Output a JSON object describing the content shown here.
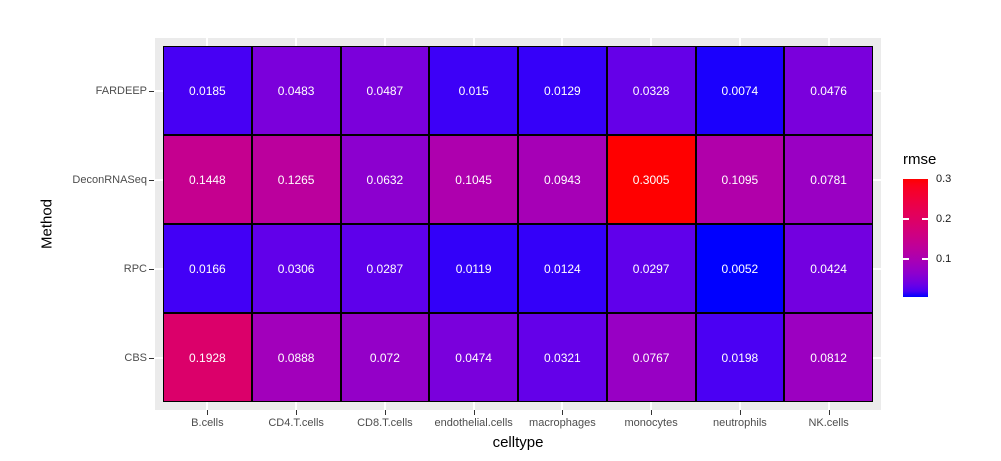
{
  "chart_data": {
    "type": "heatmap",
    "title": "",
    "xlabel": "celltype",
    "ylabel": "Method",
    "columns": [
      "B.cells",
      "CD4.T.cells",
      "CD8.T.cells",
      "endothelial.cells",
      "macrophages",
      "monocytes",
      "neutrophils",
      "NK.cells"
    ],
    "rows": [
      "FARDEEP",
      "DeconRNASeq",
      "RPC",
      "CBS"
    ],
    "values": [
      [
        0.0185,
        0.0483,
        0.0487,
        0.015,
        0.0129,
        0.0328,
        0.0074,
        0.0476
      ],
      [
        0.1448,
        0.1265,
        0.0632,
        0.1045,
        0.0943,
        0.3005,
        0.1095,
        0.0781
      ],
      [
        0.0166,
        0.0306,
        0.0287,
        0.0119,
        0.0124,
        0.0297,
        0.0052,
        0.0424
      ],
      [
        0.1928,
        0.0888,
        0.072,
        0.0474,
        0.0321,
        0.0767,
        0.0198,
        0.0812
      ]
    ],
    "fill": {
      "low": "#0000FF",
      "high": "#FF0000",
      "interpolation": "lab",
      "limits": [
        0.0052,
        0.3005
      ]
    },
    "cell_label_color": "#FFFFFF",
    "cell_border_color": "#000000",
    "grid": true,
    "legend_position": "right"
  },
  "panel": {
    "background": "#EBEBEB",
    "grid_color": "#FFFFFF",
    "axis_text_color": "#4D4D4D"
  },
  "legend": {
    "title": "rmse",
    "breaks": [
      0.3,
      0.2,
      0.1
    ],
    "labels": [
      "0.3",
      "0.2",
      "0.1"
    ]
  }
}
